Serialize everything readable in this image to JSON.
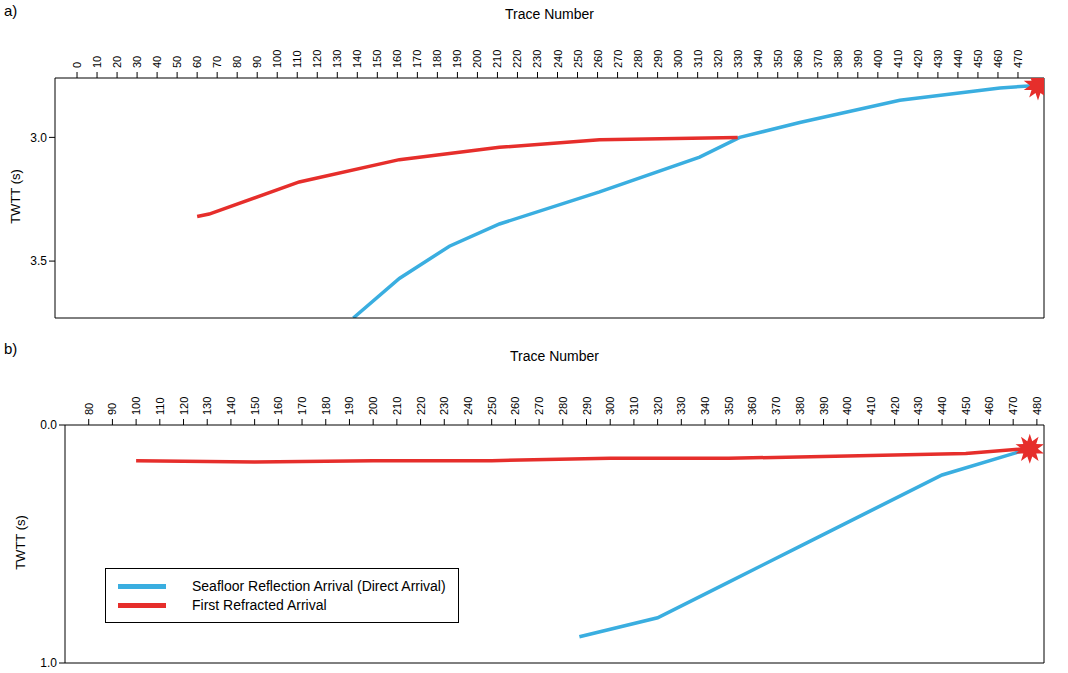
{
  "chart_data": [
    {
      "panel": "a)",
      "type": "line",
      "x_label": "Trace Number",
      "y_label": "TWTT (s)",
      "xlim": [
        -11,
        483
      ],
      "xticks": [
        0,
        10,
        20,
        30,
        40,
        50,
        60,
        70,
        80,
        90,
        100,
        110,
        120,
        130,
        140,
        150,
        160,
        170,
        180,
        190,
        200,
        210,
        220,
        230,
        240,
        250,
        260,
        270,
        280,
        290,
        300,
        310,
        320,
        330,
        340,
        350,
        360,
        370,
        380,
        390,
        400,
        410,
        420,
        430,
        440,
        450,
        460,
        470
      ],
      "ylim": [
        3.73,
        2.76
      ],
      "yticks": [
        {
          "value": 3,
          "label": "3.0"
        },
        {
          "value": 3.5,
          "label": "3.5"
        }
      ],
      "series": [
        {
          "color": "#3aaee0",
          "x": [
            138,
            161,
            186,
            211,
            261,
            311,
            331,
            361,
            411,
            461,
            480
          ],
          "values": [
            3.73,
            3.57,
            3.44,
            3.35,
            3.22,
            3.08,
            3.0,
            2.94,
            2.85,
            2.8,
            2.79
          ]
        },
        {
          "color": "#e62e2b",
          "x": [
            60,
            66,
            111,
            161,
            211,
            261,
            330
          ],
          "values": [
            3.32,
            3.31,
            3.18,
            3.09,
            3.04,
            3.01,
            3.0
          ]
        }
      ],
      "source": {
        "x": 480,
        "y": 2.79,
        "color": "#e62e2b",
        "marker": "star"
      }
    },
    {
      "panel": "b)",
      "type": "line",
      "x_label": "Trace Number",
      "y_label": "TWTT (s)",
      "xlim": [
        70,
        483
      ],
      "xticks": [
        80,
        90,
        100,
        110,
        120,
        130,
        140,
        150,
        160,
        170,
        180,
        190,
        200,
        210,
        220,
        230,
        240,
        250,
        260,
        270,
        280,
        290,
        300,
        310,
        320,
        330,
        340,
        350,
        360,
        370,
        380,
        390,
        400,
        410,
        420,
        430,
        440,
        450,
        460,
        470,
        480
      ],
      "ylim": [
        1,
        0
      ],
      "yticks": [
        {
          "value": 0,
          "label": "0.0"
        },
        {
          "value": 1,
          "label": "1.0"
        }
      ],
      "legend": "lower left",
      "series": [
        {
          "name": "Seafloor Reflection Arrival (Direct Arrival)",
          "color": "#3aaee0",
          "x": [
            287,
            320,
            350,
            380,
            410,
            440,
            470,
            477
          ],
          "values": [
            0.89,
            0.81,
            0.66,
            0.51,
            0.36,
            0.21,
            0.12,
            0.1
          ]
        },
        {
          "name": "First Refracted Arrival",
          "color": "#e62e2b",
          "x": [
            100,
            150,
            200,
            250,
            300,
            350,
            400,
            450,
            475
          ],
          "values": [
            0.15,
            0.155,
            0.15,
            0.15,
            0.14,
            0.14,
            0.13,
            0.12,
            0.1
          ]
        }
      ],
      "source": {
        "x": 477,
        "y": 0.1,
        "color": "#e62e2b",
        "marker": "star"
      }
    }
  ]
}
